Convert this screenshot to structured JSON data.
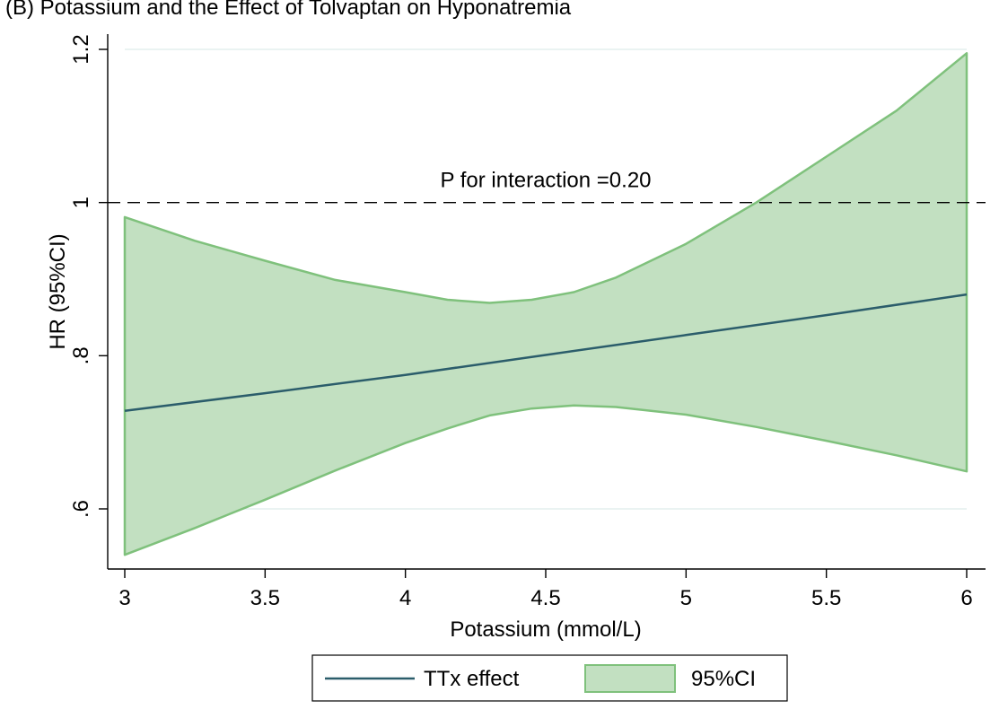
{
  "header": {
    "title": "(B) Potassium and the Effect of Tolvaptan on Hyponatremia"
  },
  "chart_data": {
    "type": "area",
    "title": "",
    "xlabel": "Potassium (mmol/L)",
    "ylabel": "HR (95%CI)",
    "xlim": [
      3,
      6
    ],
    "ylim": [
      0.6,
      1.2
    ],
    "x_ticks": [
      3,
      3.5,
      4,
      4.5,
      5,
      5.5,
      6
    ],
    "x_tick_labels": [
      "3",
      "3.5",
      "4",
      "4.5",
      "5",
      "5.5",
      "6"
    ],
    "y_ticks": [
      0.6,
      0.8,
      1,
      1.2
    ],
    "y_tick_labels": [
      ".6",
      ".8",
      "1",
      "1.2"
    ],
    "grid": true,
    "reference_line": {
      "y": 1,
      "style": "dashed"
    },
    "annotation": {
      "text": "P for interaction =0.20",
      "x": 4.5,
      "y": 1.02
    },
    "series": [
      {
        "name": "TTx effect",
        "kind": "line",
        "color": "#2b5d6b",
        "x": [
          3,
          3.5,
          4,
          4.5,
          5,
          5.5,
          6
        ],
        "y": [
          0.728,
          0.751,
          0.775,
          0.801,
          0.827,
          0.853,
          0.88
        ]
      },
      {
        "name": "95%CI",
        "kind": "band",
        "fill": "#c2e0c1",
        "stroke": "#7fc17c",
        "x": [
          3,
          3.25,
          3.5,
          3.75,
          4,
          4.15,
          4.3,
          4.45,
          4.6,
          4.75,
          5,
          5.25,
          5.5,
          5.75,
          6
        ],
        "lower": [
          0.54,
          0.575,
          0.612,
          0.65,
          0.686,
          0.705,
          0.722,
          0.731,
          0.735,
          0.733,
          0.723,
          0.707,
          0.689,
          0.67,
          0.649
        ],
        "upper": [
          0.981,
          0.95,
          0.924,
          0.899,
          0.883,
          0.873,
          0.869,
          0.873,
          0.883,
          0.902,
          0.946,
          1.0,
          1.06,
          1.12,
          1.195
        ]
      }
    ],
    "legend": {
      "position": "bottom"
    }
  }
}
